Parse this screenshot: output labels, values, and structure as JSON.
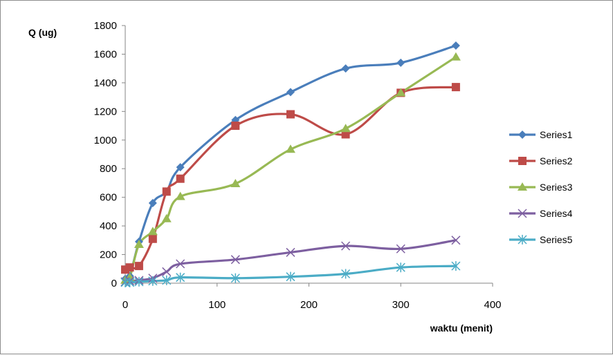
{
  "chart_data": {
    "type": "line",
    "title": "",
    "xlabel": "waktu (menit)",
    "ylabel": "Q (ug)",
    "xlim": [
      0,
      400
    ],
    "ylim": [
      0,
      1800
    ],
    "xticks": [
      0,
      100,
      200,
      300,
      400
    ],
    "yticks": [
      0,
      200,
      400,
      600,
      800,
      1000,
      1200,
      1400,
      1600,
      1800
    ],
    "grid": false,
    "legend_position": "right",
    "series": [
      {
        "name": "Series1",
        "color": "#4a7ebb",
        "marker": "diamond",
        "x": [
          0,
          5,
          15,
          30,
          45,
          60,
          120,
          180,
          240,
          300,
          360
        ],
        "y": [
          30,
          50,
          290,
          560,
          640,
          810,
          1140,
          1335,
          1500,
          1540,
          1660
        ]
      },
      {
        "name": "Series2",
        "color": "#be4b48",
        "marker": "square",
        "x": [
          0,
          5,
          15,
          30,
          45,
          60,
          120,
          180,
          240,
          300,
          360
        ],
        "y": [
          95,
          110,
          120,
          310,
          640,
          730,
          1100,
          1180,
          1040,
          1330,
          1370
        ]
      },
      {
        "name": "Series3",
        "color": "#98b954",
        "marker": "triangle",
        "x": [
          0,
          5,
          15,
          30,
          45,
          60,
          120,
          180,
          240,
          300,
          360
        ],
        "y": [
          20,
          40,
          270,
          360,
          450,
          605,
          695,
          935,
          1080,
          1330,
          1580
        ]
      },
      {
        "name": "Series4",
        "color": "#7d5fa0",
        "marker": "x",
        "x": [
          0,
          5,
          15,
          30,
          45,
          60,
          120,
          180,
          240,
          300,
          360
        ],
        "y": [
          10,
          15,
          20,
          35,
          80,
          135,
          165,
          215,
          260,
          240,
          300
        ]
      },
      {
        "name": "Series5",
        "color": "#4bacc6",
        "marker": "star",
        "x": [
          0,
          5,
          15,
          30,
          45,
          60,
          120,
          180,
          240,
          300,
          360
        ],
        "y": [
          5,
          5,
          10,
          15,
          20,
          40,
          35,
          45,
          65,
          110,
          120
        ]
      }
    ]
  }
}
